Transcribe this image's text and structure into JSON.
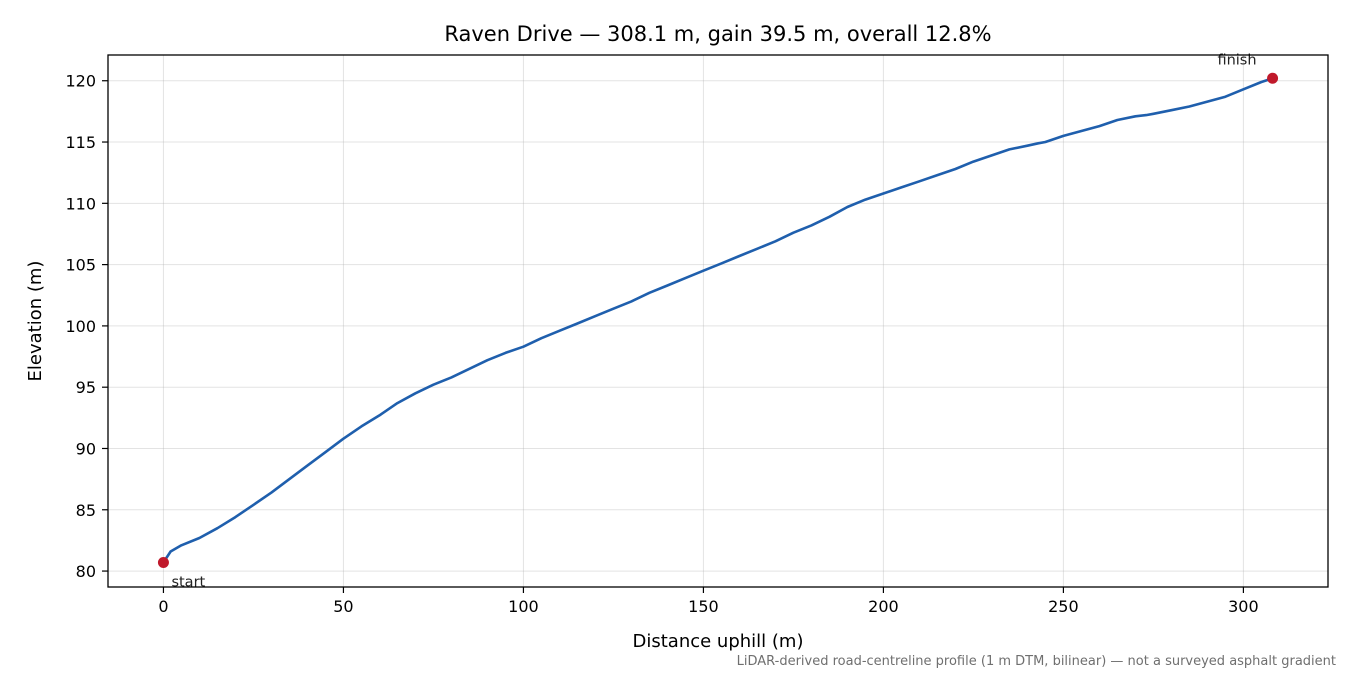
{
  "chart_data": {
    "type": "line",
    "title": "Raven Drive — 308.1 m, gain 39.5 m, overall 12.8%",
    "xlabel": "Distance uphill (m)",
    "ylabel": "Elevation (m)",
    "xlim": [
      -15.4,
      323.5
    ],
    "ylim": [
      78.7,
      122.1
    ],
    "x_ticks": [
      0,
      50,
      100,
      150,
      200,
      250,
      300
    ],
    "y_ticks": [
      80,
      85,
      90,
      95,
      100,
      105,
      110,
      115,
      120
    ],
    "grid": true,
    "series": [
      {
        "color": "#1f5fad",
        "x": [
          0,
          2,
          5,
          10,
          15,
          20,
          25,
          30,
          35,
          40,
          45,
          50,
          55,
          60,
          65,
          70,
          75,
          80,
          85,
          90,
          95,
          100,
          105,
          110,
          115,
          120,
          125,
          130,
          135,
          140,
          145,
          150,
          155,
          160,
          165,
          170,
          175,
          180,
          185,
          190,
          195,
          200,
          205,
          210,
          215,
          220,
          225,
          230,
          235,
          240,
          243,
          245,
          250,
          255,
          260,
          265,
          270,
          273,
          275,
          280,
          285,
          290,
          295,
          300,
          305,
          308.1
        ],
        "y": [
          80.7,
          81.6,
          82.1,
          82.7,
          83.5,
          84.4,
          85.4,
          86.4,
          87.5,
          88.6,
          89.7,
          90.8,
          91.8,
          92.7,
          93.7,
          94.5,
          95.2,
          95.8,
          96.5,
          97.2,
          97.8,
          98.3,
          99.0,
          99.6,
          100.2,
          100.8,
          101.4,
          102.0,
          102.7,
          103.3,
          103.9,
          104.5,
          105.1,
          105.7,
          106.3,
          106.9,
          107.6,
          108.2,
          108.9,
          109.7,
          110.3,
          110.8,
          111.3,
          111.8,
          112.3,
          112.8,
          113.4,
          113.9,
          114.4,
          114.7,
          114.9,
          115.0,
          115.5,
          115.9,
          116.3,
          116.8,
          117.1,
          117.2,
          117.3,
          117.6,
          117.9,
          118.3,
          118.7,
          119.3,
          119.9,
          120.2
        ]
      }
    ],
    "markers": [
      {
        "label": "start",
        "x": 0,
        "y": 80.7,
        "color": "#c0192b"
      },
      {
        "label": "finish",
        "x": 308.1,
        "y": 120.2,
        "color": "#c0192b"
      }
    ],
    "footnote": "LiDAR-derived road-centreline profile (1 m DTM, bilinear) — not a surveyed asphalt gradient"
  }
}
